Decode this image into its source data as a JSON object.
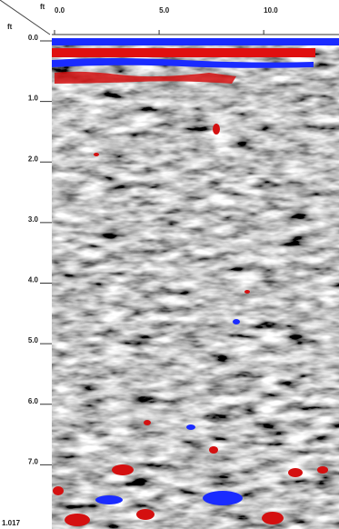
{
  "chart_data": {
    "type": "radargram",
    "x_unit": "ft",
    "y_unit": "ft",
    "xlim": [
      0,
      13.6
    ],
    "ylim": [
      0,
      8.06
    ],
    "xticks": [
      {
        "value": 0,
        "label": "0.0"
      },
      {
        "value": 5,
        "label": "5.0"
      },
      {
        "value": 10,
        "label": "10.0"
      }
    ],
    "yticks": [
      {
        "value": 0,
        "label": "0.0"
      },
      {
        "value": 1,
        "label": "1.0"
      },
      {
        "value": 2,
        "label": "2.0"
      },
      {
        "value": 3,
        "label": "3.0"
      },
      {
        "value": 4,
        "label": "4.0"
      },
      {
        "value": 5,
        "label": "5.0"
      },
      {
        "value": 6,
        "label": "6.0"
      },
      {
        "value": 7,
        "label": "7.0"
      }
    ],
    "annotation": "1.017"
  }
}
